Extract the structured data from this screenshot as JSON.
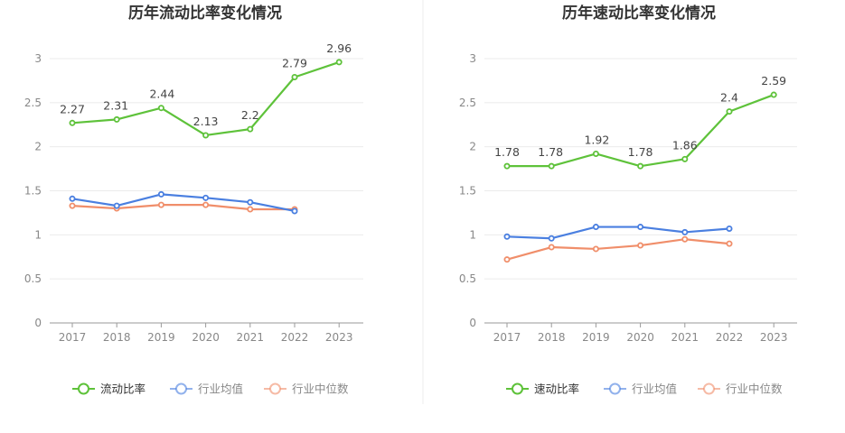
{
  "chart_data": [
    {
      "type": "line",
      "title": "历年流动比率变化情况",
      "categories": [
        "2017",
        "2018",
        "2019",
        "2020",
        "2021",
        "2022",
        "2023"
      ],
      "ylim": [
        0,
        3
      ],
      "yticks": [
        "0",
        "0.5",
        "1",
        "1.5",
        "2",
        "2.5",
        "3"
      ],
      "grid": true,
      "legend_position": "bottom",
      "series": [
        {
          "name": "流动比率",
          "color": "#5ec23a",
          "values": [
            2.27,
            2.31,
            2.44,
            2.13,
            2.2,
            2.79,
            2.96
          ],
          "labels": [
            "2.27",
            "2.31",
            "2.44",
            "2.13",
            "2.2",
            "2.79",
            "2.96"
          ]
        },
        {
          "name": "行业均值",
          "color": "#4a7fe0",
          "values": [
            1.41,
            1.33,
            1.46,
            1.42,
            1.37,
            1.27,
            null
          ]
        },
        {
          "name": "行业中位数",
          "color": "#f08e6a",
          "values": [
            1.33,
            1.3,
            1.34,
            1.34,
            1.29,
            1.29,
            null
          ]
        }
      ]
    },
    {
      "type": "line",
      "title": "历年速动比率变化情况",
      "categories": [
        "2017",
        "2018",
        "2019",
        "2020",
        "2021",
        "2022",
        "2023"
      ],
      "ylim": [
        0,
        3
      ],
      "yticks": [
        "0",
        "0.5",
        "1",
        "1.5",
        "2",
        "2.5",
        "3"
      ],
      "grid": true,
      "legend_position": "bottom",
      "series": [
        {
          "name": "速动比率",
          "color": "#5ec23a",
          "values": [
            1.78,
            1.78,
            1.92,
            1.78,
            1.86,
            2.4,
            2.59
          ],
          "labels": [
            "1.78",
            "1.78",
            "1.92",
            "1.78",
            "1.86",
            "2.4",
            "2.59"
          ]
        },
        {
          "name": "行业均值",
          "color": "#4a7fe0",
          "values": [
            0.98,
            0.96,
            1.09,
            1.09,
            1.03,
            1.07,
            null
          ]
        },
        {
          "name": "行业中位数",
          "color": "#f08e6a",
          "values": [
            0.72,
            0.86,
            0.84,
            0.88,
            0.95,
            0.9,
            null
          ]
        }
      ]
    }
  ]
}
